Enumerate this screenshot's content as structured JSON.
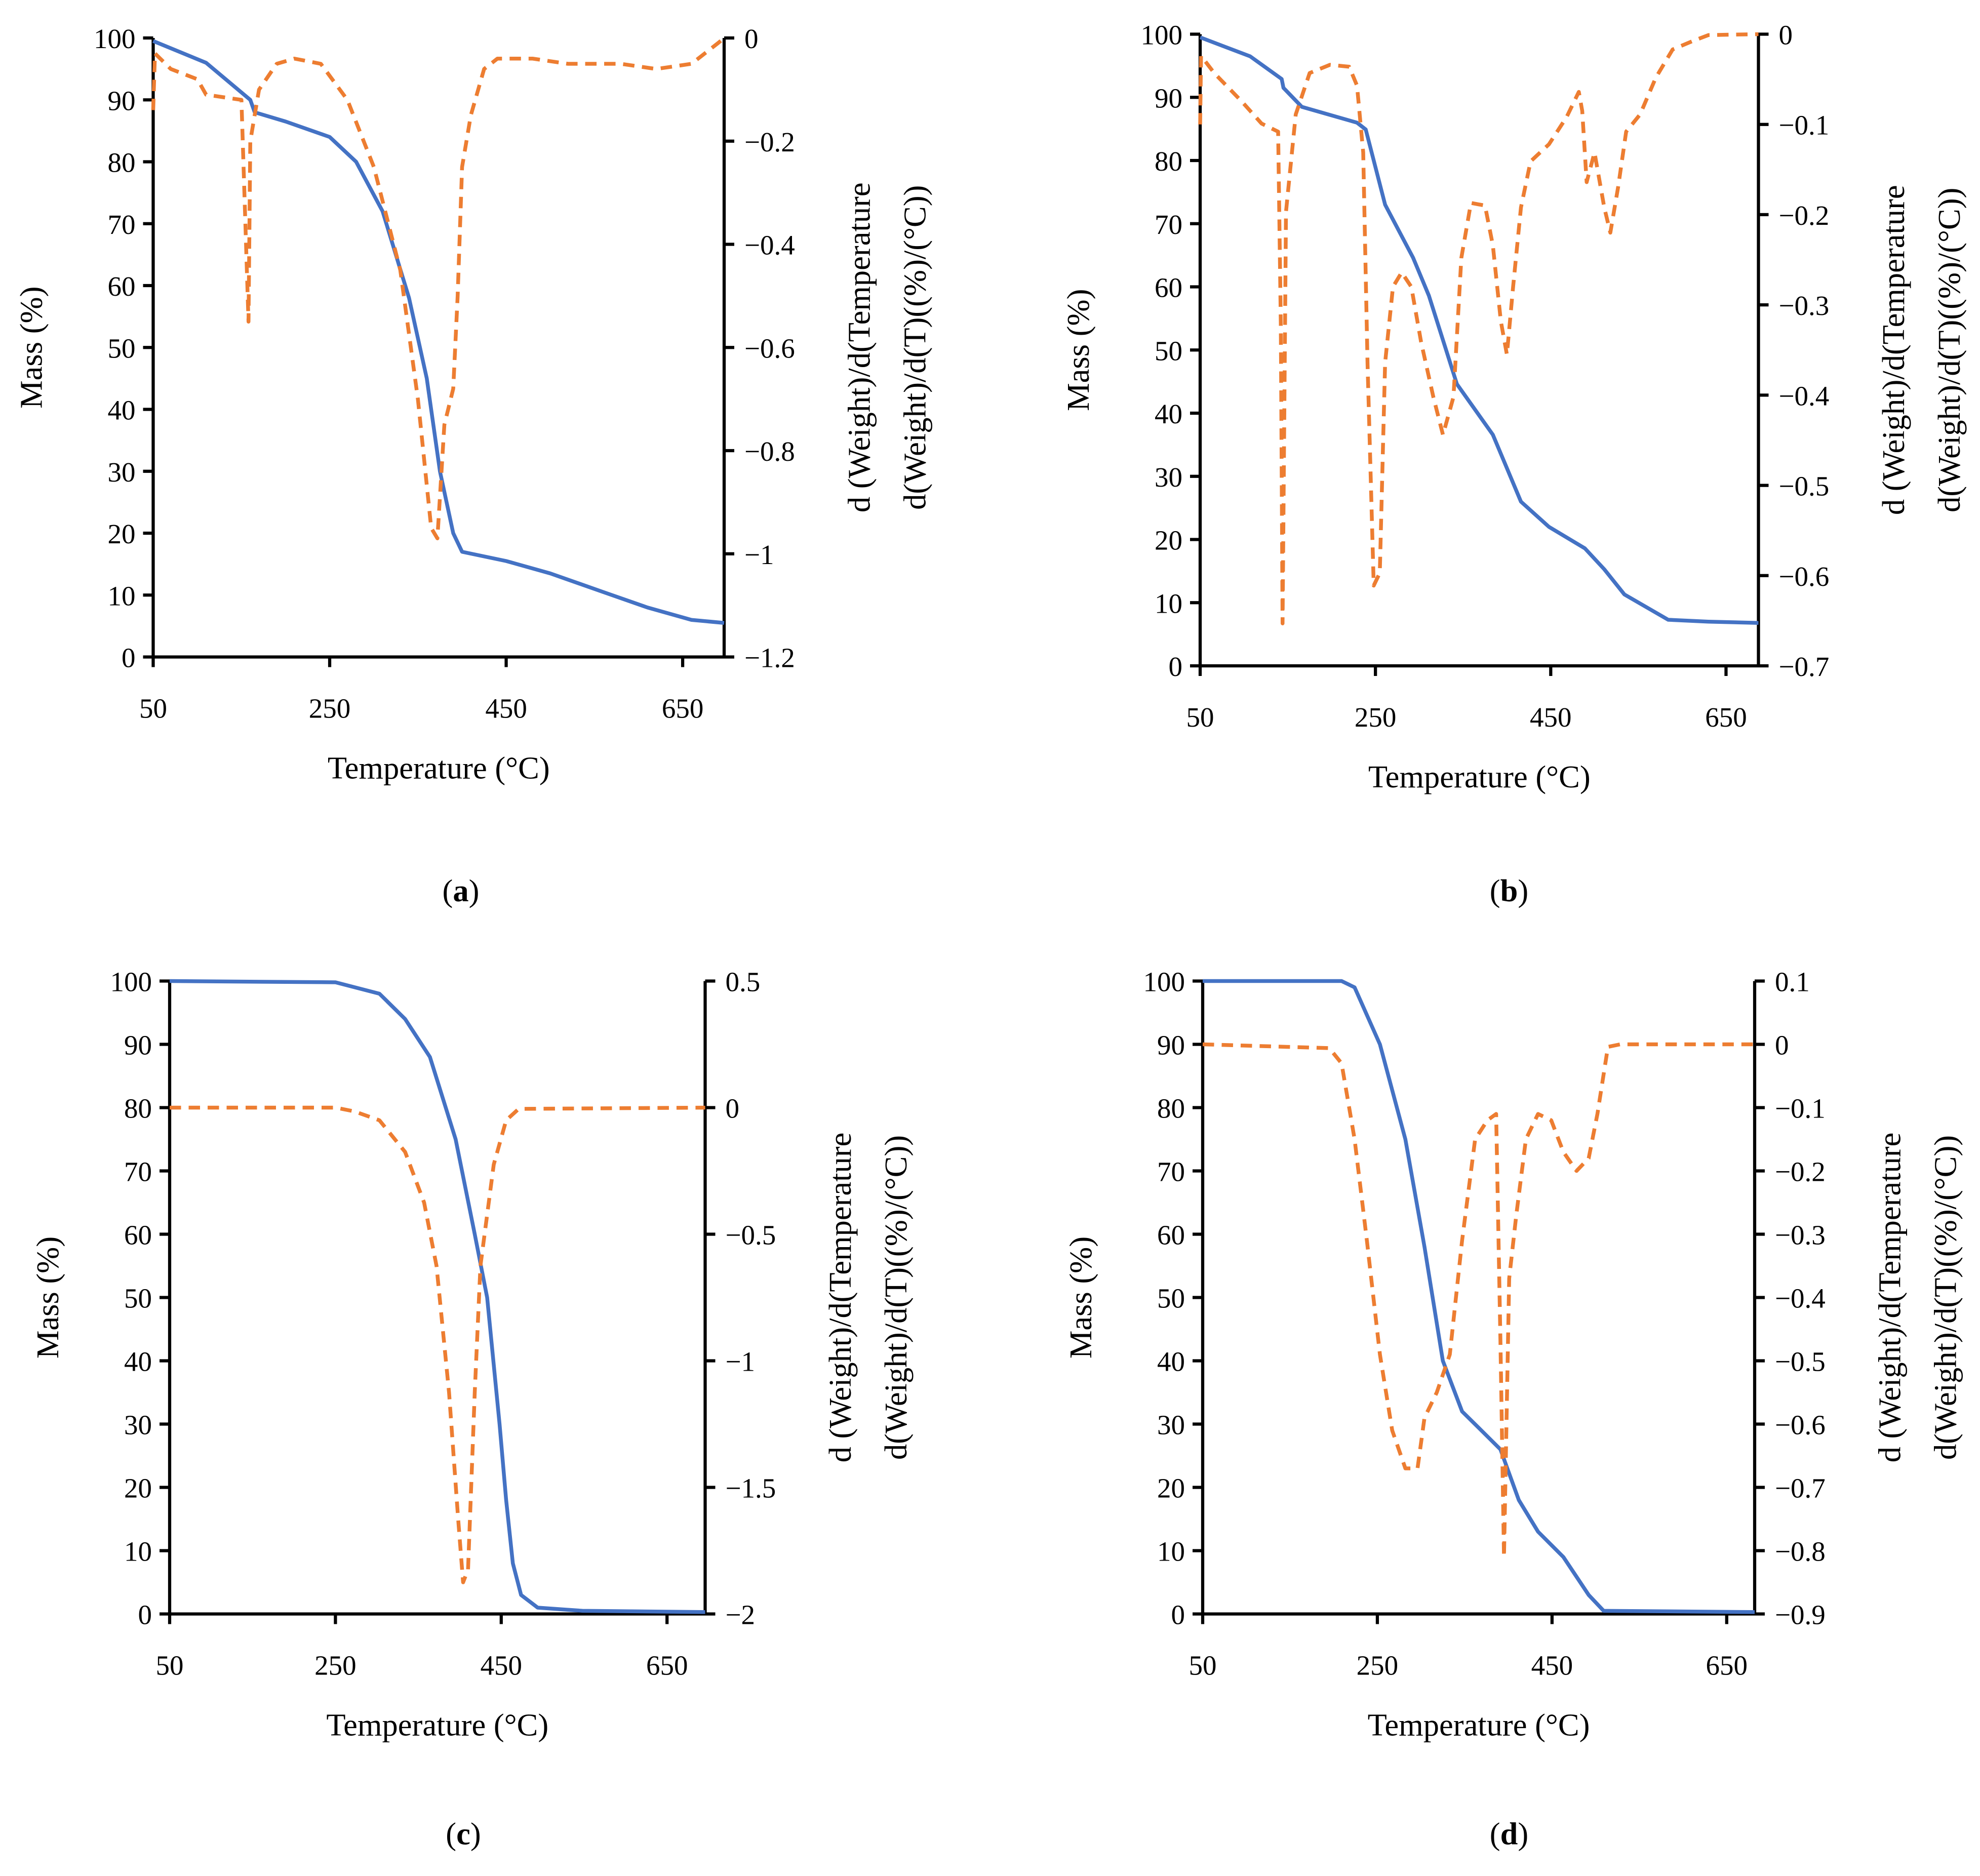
{
  "colors": {
    "mass": "#4472C4",
    "derivative": "#ED7D31",
    "axis": "#000000"
  },
  "chart_data": [
    {
      "type": "line",
      "panel": "a",
      "panel_label": "a",
      "xlabel": "Temperature (°C)",
      "ylabel": "Mass (%)",
      "y2label": [
        "d (Weight)/d(Temperature",
        "d(Weight)/d(T)((%)/(°C))"
      ],
      "xlim": [
        50,
        697
      ],
      "xticks": [
        50,
        250,
        450,
        650
      ],
      "ylim": [
        0,
        100
      ],
      "yticks": [
        0,
        10,
        20,
        30,
        40,
        50,
        60,
        70,
        80,
        90,
        100
      ],
      "y2lim": [
        -1.2,
        0
      ],
      "y2ticks": [
        0,
        -0.2,
        -0.4,
        -0.6,
        -0.8,
        -1,
        -1.2
      ],
      "series": [
        {
          "name": "Mass",
          "axis": "left",
          "style": "solid",
          "x": [
            50,
            110,
            160,
            165,
            200,
            250,
            280,
            310,
            340,
            360,
            375,
            390,
            400,
            450,
            500,
            560,
            610,
            660,
            697
          ],
          "y": [
            99.5,
            96,
            90,
            88,
            86.5,
            84,
            80,
            72,
            58,
            45,
            30,
            20,
            17,
            15.5,
            13.5,
            10.5,
            8,
            6,
            5.5
          ]
        },
        {
          "name": "Derivative",
          "axis": "right",
          "style": "dashed",
          "x": [
            50,
            52,
            70,
            100,
            110,
            150,
            158,
            160,
            170,
            190,
            210,
            240,
            270,
            300,
            330,
            350,
            365,
            372,
            380,
            390,
            395,
            400,
            410,
            425,
            440,
            480,
            520,
            580,
            620,
            660,
            690,
            697
          ],
          "y": [
            -0.14,
            -0.03,
            -0.06,
            -0.08,
            -0.11,
            -0.12,
            -0.55,
            -0.2,
            -0.1,
            -0.05,
            -0.04,
            -0.05,
            -0.12,
            -0.25,
            -0.45,
            -0.7,
            -0.95,
            -0.97,
            -0.75,
            -0.68,
            -0.5,
            -0.25,
            -0.15,
            -0.06,
            -0.04,
            -0.04,
            -0.05,
            -0.05,
            -0.06,
            -0.05,
            -0.01,
            0
          ]
        }
      ]
    },
    {
      "type": "line",
      "panel": "b",
      "panel_label": "b",
      "xlabel": "Temperature (°C)",
      "ylabel": "Mass (%)",
      "y2label": [
        "d (Weight)/d(Temperature",
        "d(Weight)/d(T)((%)/(°C))"
      ],
      "xlim": [
        50,
        687
      ],
      "xticks": [
        50,
        250,
        450,
        650
      ],
      "ylim": [
        0,
        100
      ],
      "yticks": [
        0,
        10,
        20,
        30,
        40,
        50,
        60,
        70,
        80,
        90,
        100
      ],
      "y2lim": [
        -0.7,
        0
      ],
      "y2ticks": [
        0,
        -0.1,
        -0.2,
        -0.3,
        -0.4,
        -0.5,
        -0.6,
        -0.7
      ],
      "series": [
        {
          "name": "Mass",
          "axis": "left",
          "style": "solid",
          "x": [
            50,
            107,
            143,
            145,
            166,
            229,
            239,
            261,
            293,
            311,
            343,
            384,
            416,
            448,
            489,
            511,
            534,
            584,
            630,
            687
          ],
          "y": [
            99.5,
            96.5,
            92.9,
            91.5,
            88.5,
            86,
            84.9,
            73,
            64.6,
            58.6,
            44.6,
            36.6,
            26,
            22,
            18.6,
            15.3,
            11.3,
            7.3,
            7,
            6.8
          ]
        },
        {
          "name": "Derivative",
          "axis": "right",
          "style": "dashed",
          "x": [
            50,
            51,
            66,
            98,
            120,
            139,
            142,
            144,
            148,
            159,
            175,
            198,
            220,
            229,
            236,
            241,
            248,
            255,
            261,
            270,
            280,
            291,
            302,
            316,
            327,
            339,
            348,
            359,
            375,
            384,
            393,
            400,
            407,
            416,
            427,
            448,
            468,
            482,
            486,
            491,
            500,
            511,
            518,
            527,
            536,
            552,
            570,
            589,
            611,
            630,
            687
          ],
          "y": [
            -0.1,
            -0.024,
            -0.043,
            -0.075,
            -0.099,
            -0.108,
            -0.32,
            -0.653,
            -0.197,
            -0.089,
            -0.043,
            -0.034,
            -0.036,
            -0.057,
            -0.131,
            -0.364,
            -0.611,
            -0.597,
            -0.364,
            -0.28,
            -0.264,
            -0.28,
            -0.341,
            -0.402,
            -0.444,
            -0.402,
            -0.248,
            -0.187,
            -0.19,
            -0.234,
            -0.318,
            -0.355,
            -0.28,
            -0.192,
            -0.141,
            -0.122,
            -0.092,
            -0.064,
            -0.085,
            -0.164,
            -0.131,
            -0.192,
            -0.22,
            -0.169,
            -0.108,
            -0.089,
            -0.048,
            -0.017,
            -0.008,
            -0.001,
            0
          ]
        }
      ]
    },
    {
      "type": "line",
      "panel": "c",
      "panel_label": "c",
      "xlabel": "Temperature (°C)",
      "ylabel": "Mass (%)",
      "y2label": [
        "d (Weight)/d(Temperature",
        "d(Weight)/d(T)((%)/(°C))"
      ],
      "xlim": [
        50,
        696
      ],
      "xticks": [
        50,
        250,
        450,
        650
      ],
      "ylim": [
        0,
        100
      ],
      "yticks": [
        0,
        10,
        20,
        30,
        40,
        50,
        60,
        70,
        80,
        90,
        100
      ],
      "y2lim": [
        -2,
        0.5
      ],
      "y2ticks": [
        0.5,
        0,
        -0.5,
        -1,
        -1.5,
        -2
      ],
      "series": [
        {
          "name": "Mass",
          "axis": "left",
          "style": "solid",
          "x": [
            50,
            250,
            303,
            334,
            364,
            395,
            418,
            433,
            448,
            456,
            464,
            474,
            494,
            548,
            696
          ],
          "y": [
            100,
            99.8,
            98,
            94,
            88,
            75,
            60,
            50,
            30,
            18,
            8,
            3,
            1,
            0.5,
            0.3
          ]
        },
        {
          "name": "Derivative",
          "axis": "right",
          "style": "dashed",
          "x": [
            50,
            250,
            273,
            303,
            334,
            357,
            372,
            387,
            398,
            404,
            410,
            418,
            425,
            441,
            456,
            471,
            696
          ],
          "y": [
            0,
            0,
            -0.015,
            -0.05,
            -0.175,
            -0.375,
            -0.625,
            -1.125,
            -1.625,
            -1.875,
            -1.825,
            -1.125,
            -0.625,
            -0.225,
            -0.05,
            -0.005,
            0
          ]
        }
      ]
    },
    {
      "type": "line",
      "panel": "d",
      "panel_label": "d",
      "xlabel": "Temperature (°C)",
      "ylabel": "Mass (%)",
      "y2label": [
        "d (Weight)/d(Temperature",
        "d(Weight)/d(T)((%)/(°C))"
      ],
      "xlim": [
        50,
        682
      ],
      "xticks": [
        50,
        250,
        450,
        650
      ],
      "ylim": [
        0,
        100
      ],
      "yticks": [
        0,
        10,
        20,
        30,
        40,
        50,
        60,
        70,
        80,
        90,
        100
      ],
      "y2lim": [
        -0.9,
        0.1
      ],
      "y2ticks": [
        0.1,
        0,
        -0.1,
        -0.2,
        -0.3,
        -0.4,
        -0.5,
        -0.6,
        -0.7,
        -0.8,
        -0.9
      ],
      "series": [
        {
          "name": "Mass",
          "axis": "left",
          "style": "solid",
          "x": [
            50,
            209,
            224,
            253,
            282,
            304,
            325,
            347,
            369,
            391,
            412,
            434,
            463,
            492,
            509,
            682
          ],
          "y": [
            100,
            100,
            99,
            90,
            75,
            58,
            40,
            32,
            29,
            26,
            18,
            13,
            9,
            3,
            0.5,
            0.3
          ]
        },
        {
          "name": "Derivative",
          "axis": "right",
          "style": "dashed",
          "x": [
            50,
            195,
            209,
            224,
            238,
            253,
            267,
            282,
            296,
            304,
            318,
            333,
            347,
            362,
            376,
            386,
            391,
            395,
            401,
            409,
            420,
            434,
            449,
            463,
            478,
            492,
            502,
            514,
            528,
            682
          ],
          "y": [
            0,
            -0.006,
            -0.03,
            -0.15,
            -0.31,
            -0.49,
            -0.61,
            -0.67,
            -0.67,
            -0.59,
            -0.55,
            -0.49,
            -0.31,
            -0.15,
            -0.12,
            -0.11,
            -0.47,
            -0.81,
            -0.37,
            -0.27,
            -0.15,
            -0.11,
            -0.12,
            -0.17,
            -0.2,
            -0.18,
            -0.11,
            -0.004,
            0,
            0
          ]
        }
      ]
    }
  ]
}
